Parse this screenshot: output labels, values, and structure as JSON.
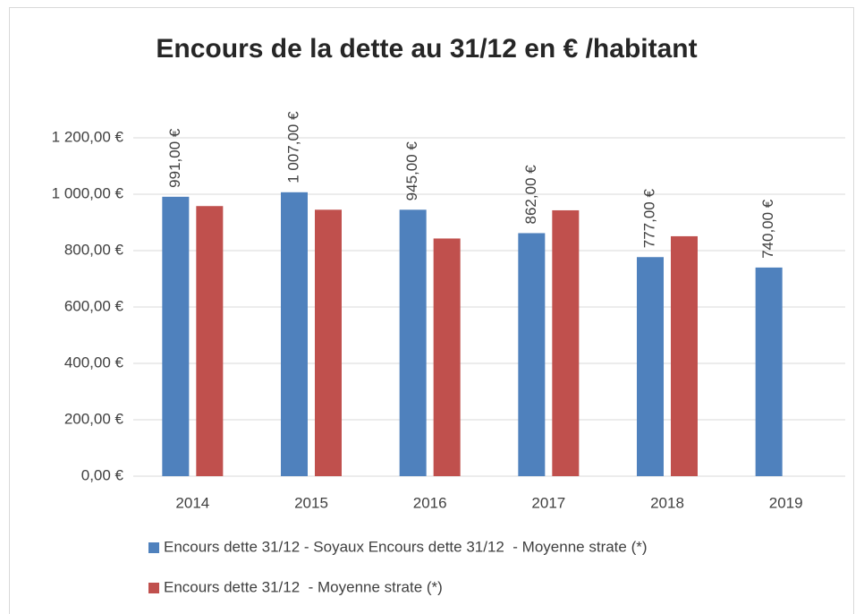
{
  "chart_data": {
    "type": "bar",
    "title": "Encours de la dette au 31/12 en € /habitant",
    "categories": [
      "2014",
      "2015",
      "2016",
      "2017",
      "2018",
      "2019"
    ],
    "series": [
      {
        "name": "Encours dette 31/12 - Soyaux Encours dette 31/12  - Moyenne strate (*)",
        "color": "#4f81bd",
        "values": [
          991,
          1007,
          945,
          862,
          777,
          740
        ],
        "value_labels": [
          "991,00 €",
          "1 007,00 €",
          "945,00 €",
          "862,00 €",
          "777,00 €",
          "740,00 €"
        ]
      },
      {
        "name": "Encours dette 31/12  - Moyenne strate (*)",
        "color": "#c0504d",
        "values": [
          958,
          945,
          843,
          943,
          851,
          null
        ]
      }
    ],
    "ylim": [
      0,
      1200
    ],
    "yticks": [
      {
        "value": 0,
        "label": "0,00 €"
      },
      {
        "value": 200,
        "label": "200,00 €"
      },
      {
        "value": 400,
        "label": "400,00 €"
      },
      {
        "value": 600,
        "label": "600,00 €"
      },
      {
        "value": 800,
        "label": "800,00 €"
      },
      {
        "value": 1000,
        "label": "1 000,00 €"
      },
      {
        "value": 1200,
        "label": "1 200,00 €"
      }
    ],
    "grid": true,
    "legend": "bottom"
  }
}
